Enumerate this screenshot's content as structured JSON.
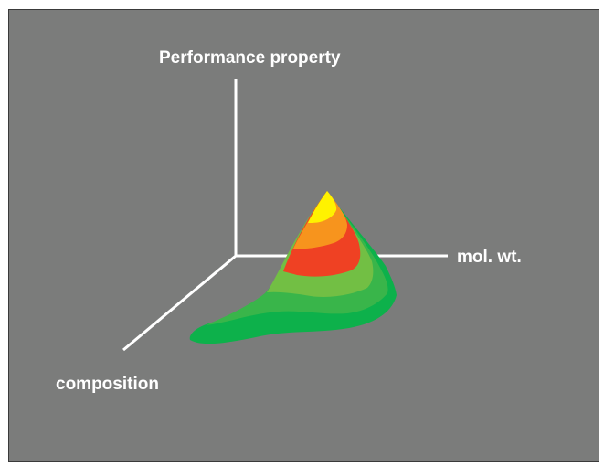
{
  "axes": {
    "vertical_label": "Performance property",
    "horizontal_label": "mol. wt.",
    "depth_label": "composition"
  },
  "colors": {
    "background": "#7b7c7b",
    "axis": "#ffffff",
    "contour_bands": [
      "#0db14b",
      "#39b54a",
      "#72bf44",
      "#ef4123",
      "#f7941d",
      "#fff200"
    ]
  }
}
